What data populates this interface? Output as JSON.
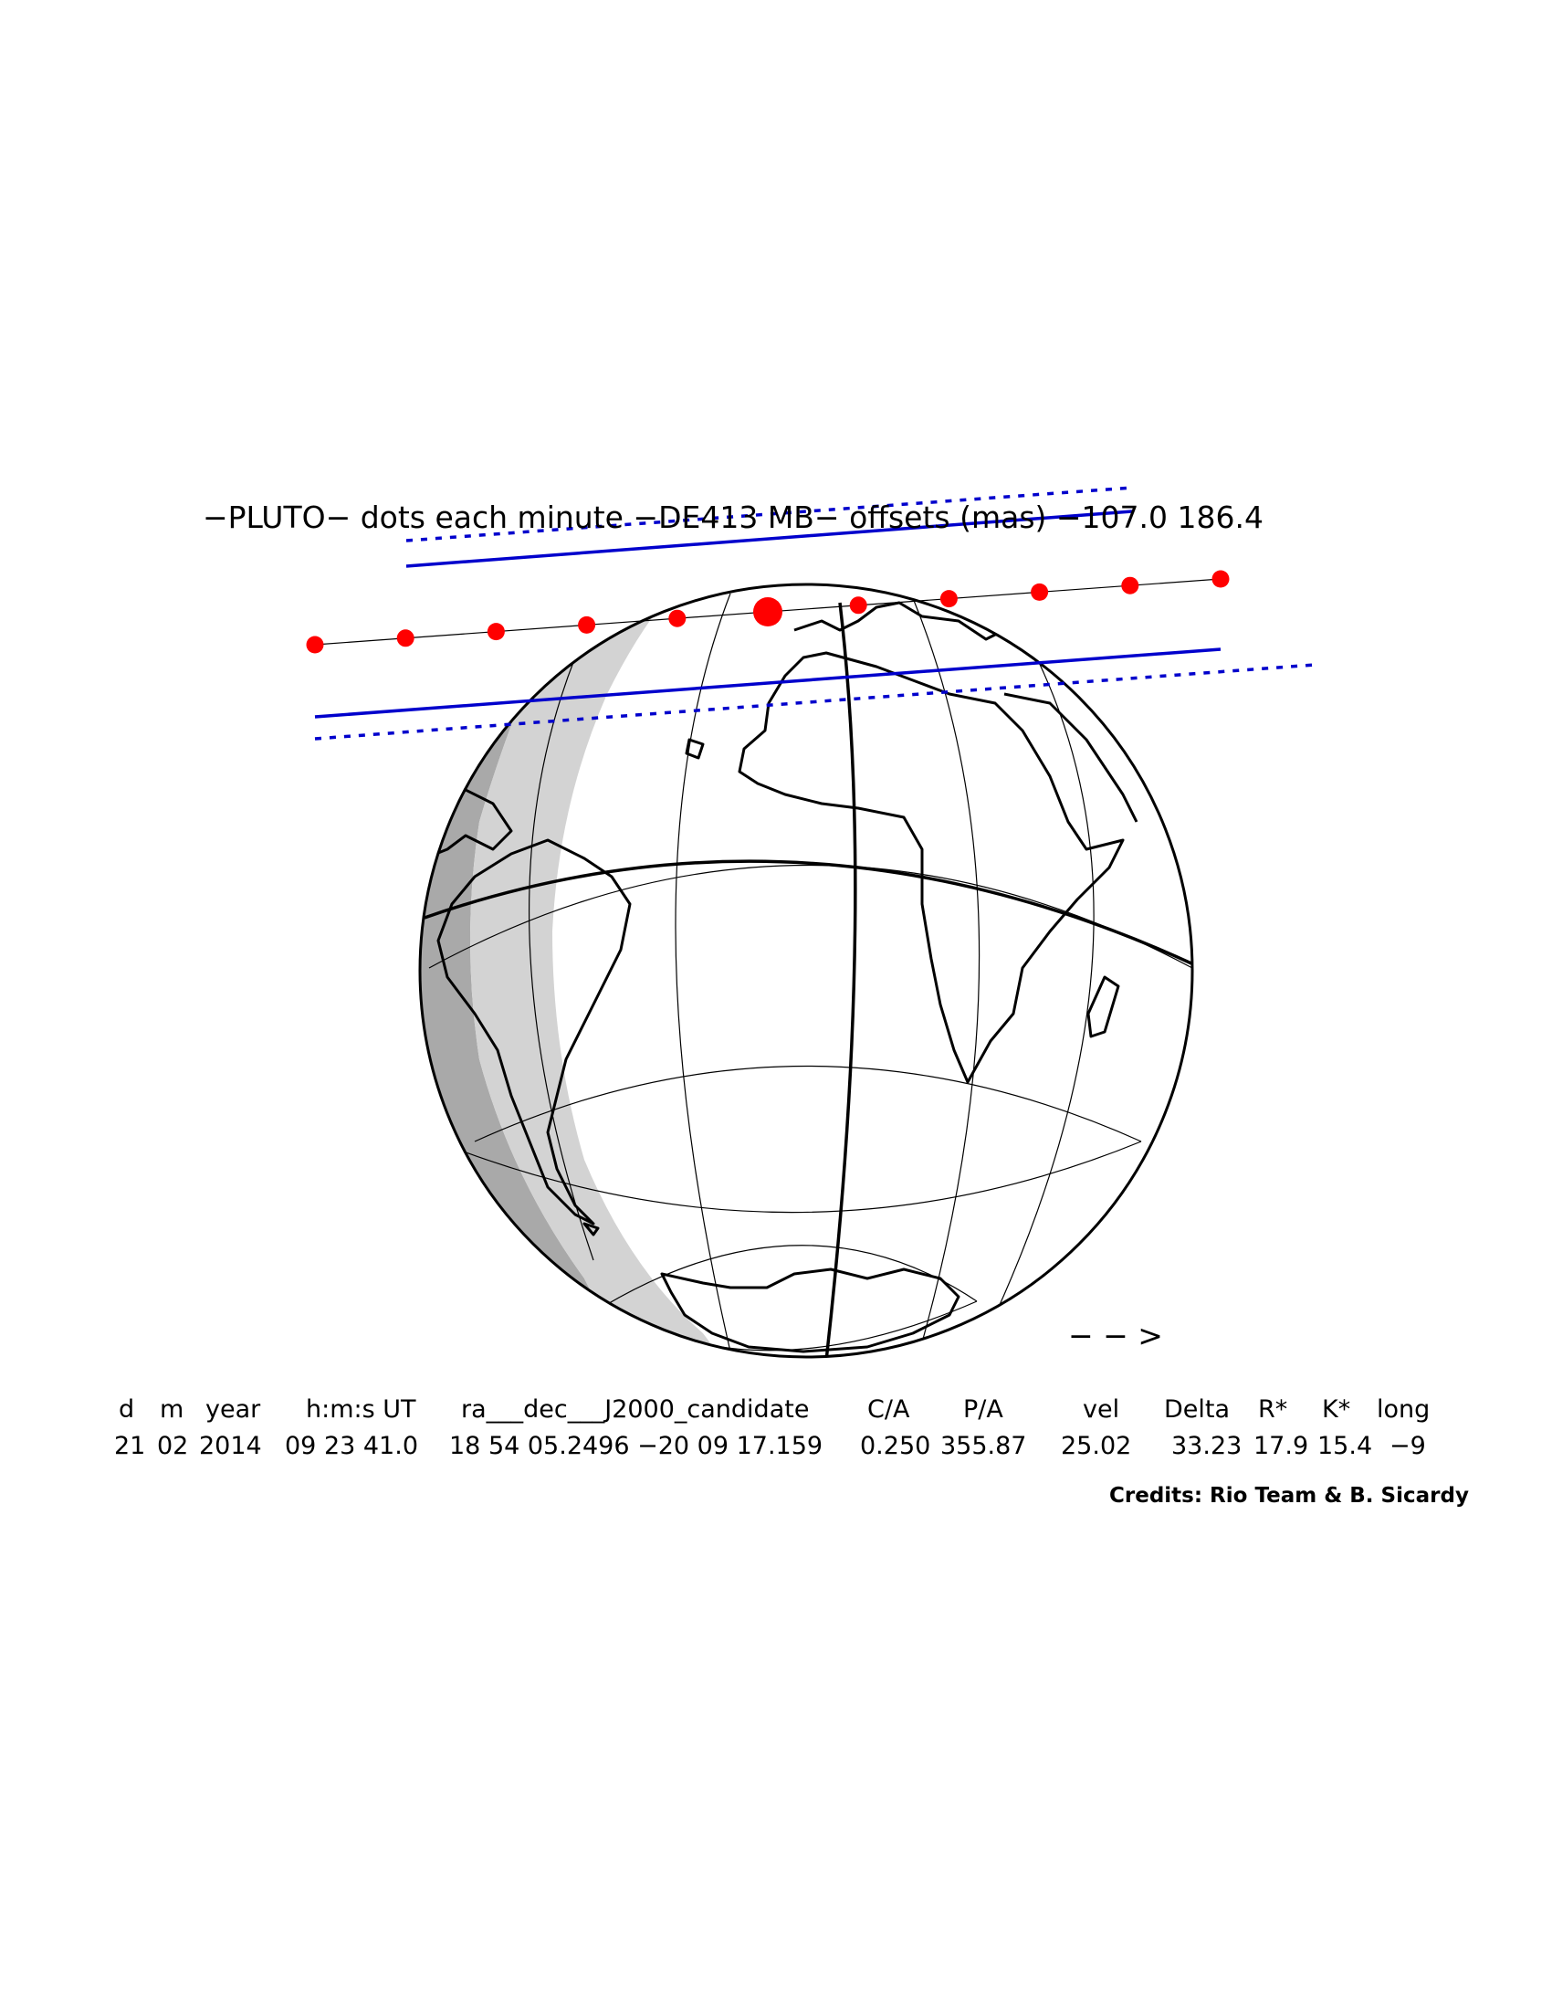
{
  "title": "−PLUTO−  dots each minute  −DE413 MB−  offsets (mas)  −107.0   186.4",
  "arrow_label": "− − >",
  "credits": "Credits: Rio Team & B. Sicardy",
  "colors": {
    "path_dots": "#ff0000",
    "shadow_limits": "#0000cc",
    "night": "#a9a9a9",
    "twilight": "#d3d3d3"
  },
  "table": {
    "headers": [
      "d",
      "m",
      "year",
      "h:m:s UT",
      "ra___dec___J2000_candidate",
      "C/A",
      "P/A",
      "vel",
      "Delta",
      "R*",
      "K*",
      "long"
    ],
    "values": [
      "21",
      "02",
      "2014",
      "09 23 41.0",
      "18 54 05.2496 −20 09 17.159",
      "0.250",
      "355.87",
      "25.02",
      "33.23",
      "17.9",
      "15.4",
      "−9"
    ]
  },
  "path": {
    "dot_count": 11,
    "closest_approach_index": 5
  }
}
